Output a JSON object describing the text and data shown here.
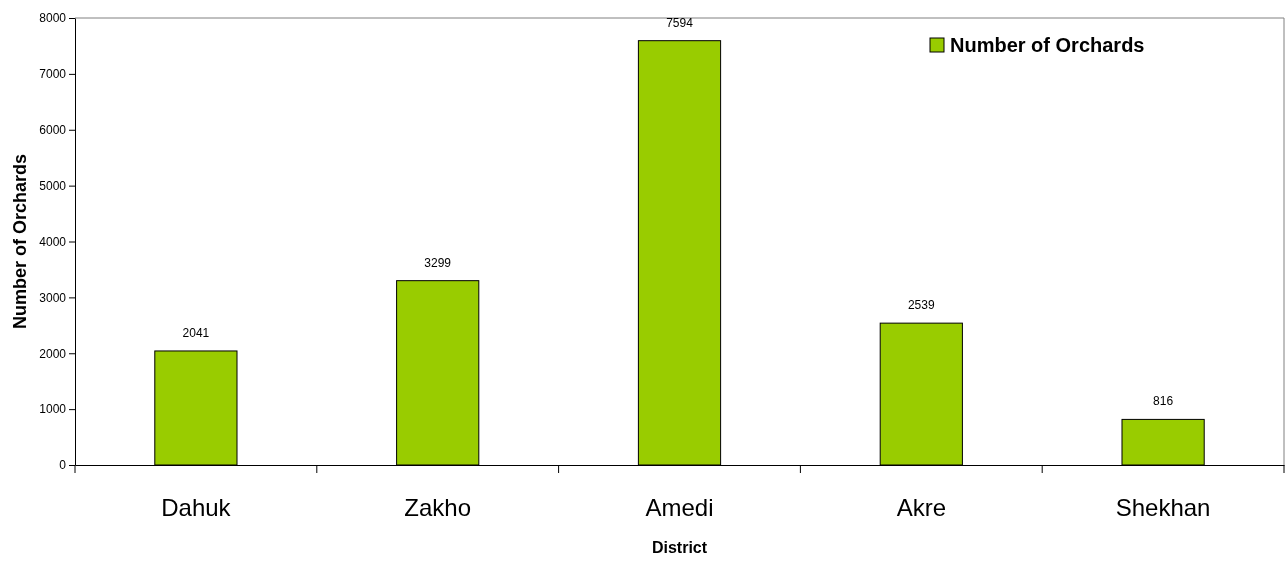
{
  "chart_data": {
    "type": "bar",
    "categories": [
      "Dahuk",
      "Zakho",
      "Amedi",
      "Akre",
      "Shekhan"
    ],
    "series": [
      {
        "name": "Number of Orchards",
        "color": "#99cc00",
        "values": [
          2041,
          3299,
          7594,
          2539,
          816
        ]
      }
    ],
    "xlabel": "District",
    "ylabel": "Number of Orchards",
    "ylim": [
      0,
      8000
    ],
    "yticks": [
      0,
      1000,
      2000,
      3000,
      4000,
      5000,
      6000,
      7000,
      8000
    ],
    "data_labels": true,
    "grid": false,
    "legend": "top right"
  }
}
